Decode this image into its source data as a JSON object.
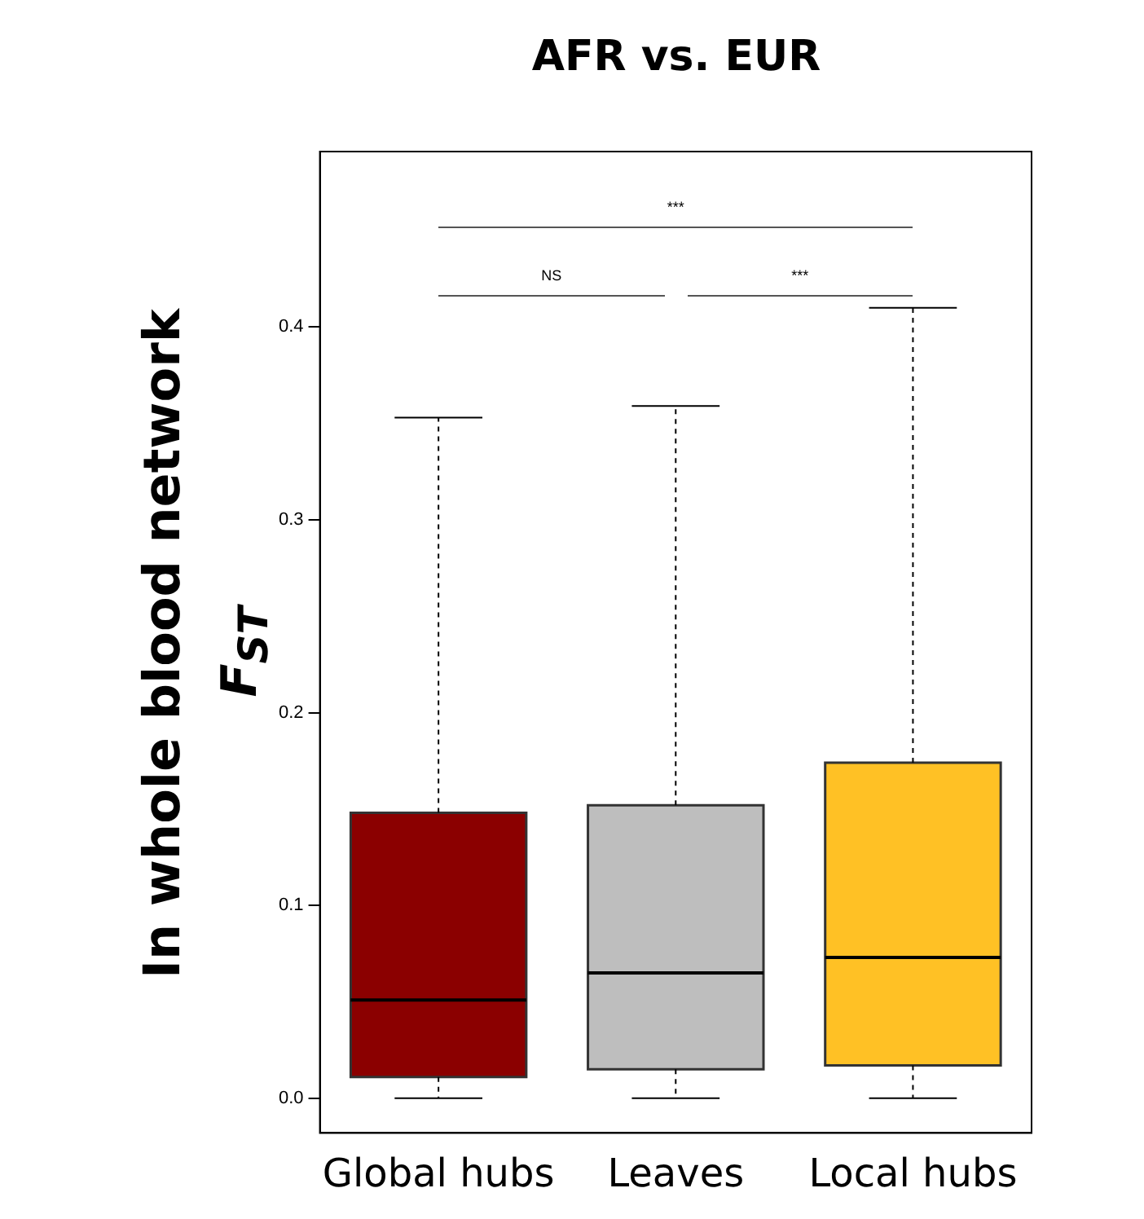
{
  "chart_data": {
    "type": "box",
    "title": "AFR vs. EUR",
    "ylabel": "F$_{ST}$",
    "annotations": [
      "In whole blood network",
      "***",
      "NS",
      "***"
    ],
    "categories": [
      "Global hubs",
      "Leaves",
      "Local hubs"
    ],
    "colors": [
      "#8b0000",
      "#bebebe",
      "#ffc125"
    ],
    "boxes": [
      {
        "low": 0.0,
        "q1": 0.011,
        "median": 0.051,
        "q3": 0.148,
        "high": 0.353
      },
      {
        "low": 0.0,
        "q1": 0.015,
        "median": 0.065,
        "q3": 0.152,
        "high": 0.359
      },
      {
        "low": 0.0,
        "q1": 0.017,
        "median": 0.073,
        "q3": 0.174,
        "high": 0.41
      }
    ],
    "ylim": [
      -0.018,
      0.491
    ],
    "yticks": [
      {
        "value": 0,
        "label": "0.0"
      },
      0.1,
      0.2,
      0.3,
      0.4
    ],
    "grid": false,
    "legend": false
  }
}
